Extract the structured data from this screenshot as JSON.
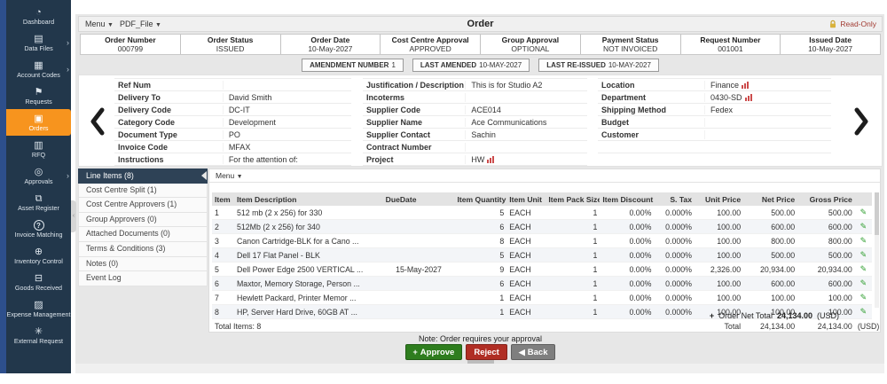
{
  "colors": {
    "accent_orange": "#f7941e",
    "sidebar_navy": "#22374b",
    "sidebar_strip_blue": "#2d4f8c",
    "active_tab_navy": "#2e4256",
    "approve_green": "#2e7d1e",
    "reject_red": "#b02e24",
    "back_gray": "#7f7f7f",
    "readonly_text": "#a23b32",
    "edit_icon_green": "#2f9e2f",
    "chart_icon_red": "#cc4b4b"
  },
  "topbar": {
    "menu_label": "Menu",
    "pdf_label": "PDF_File",
    "title": "Order",
    "readonly_label": "Read-Only"
  },
  "sidebar": {
    "items": [
      {
        "name": "dashboard",
        "label": "Dashboard",
        "icon": "dashboard-icon",
        "glyph": "◔",
        "chevron": false,
        "active": false,
        "circle": false
      },
      {
        "name": "data-files",
        "label": "Data Files",
        "icon": "data-files-icon",
        "glyph": "▤",
        "chevron": true,
        "active": false,
        "circle": false
      },
      {
        "name": "account-codes",
        "label": "Account Codes",
        "icon": "account-codes-icon",
        "glyph": "▦",
        "chevron": true,
        "active": false,
        "circle": false
      },
      {
        "name": "requests",
        "label": "Requests",
        "icon": "requests-icon",
        "glyph": "⚑",
        "chevron": false,
        "active": false,
        "circle": false
      },
      {
        "name": "orders",
        "label": "Orders",
        "icon": "orders-icon",
        "glyph": "▣",
        "chevron": false,
        "active": true,
        "circle": false
      },
      {
        "name": "rfq",
        "label": "RFQ",
        "icon": "rfq-icon",
        "glyph": "▥",
        "chevron": false,
        "active": false,
        "circle": false
      },
      {
        "name": "approvals",
        "label": "Approvals",
        "icon": "approvals-icon",
        "glyph": "◎",
        "chevron": true,
        "active": false,
        "circle": false
      },
      {
        "name": "asset-register",
        "label": "Asset Register",
        "icon": "asset-register-icon",
        "glyph": "⧉",
        "chevron": false,
        "active": false,
        "circle": false
      },
      {
        "name": "invoice-matching",
        "label": "Invoice Matching",
        "icon": "invoice-matching-icon",
        "glyph": "?",
        "chevron": false,
        "active": false,
        "circle": true
      },
      {
        "name": "inventory-control",
        "label": "Inventory Control",
        "icon": "inventory-control-icon",
        "glyph": "⊕",
        "chevron": false,
        "active": false,
        "circle": false
      },
      {
        "name": "goods-received",
        "label": "Goods Received",
        "icon": "goods-received-icon",
        "glyph": "⊟",
        "chevron": false,
        "active": false,
        "circle": false
      },
      {
        "name": "expense-management",
        "label": "Expense Management",
        "icon": "expense-management-icon",
        "glyph": "▨",
        "chevron": false,
        "active": false,
        "circle": false
      },
      {
        "name": "external-request",
        "label": "External Request",
        "icon": "external-request-icon",
        "glyph": "✳",
        "chevron": false,
        "active": false,
        "circle": false
      }
    ]
  },
  "header_fields": [
    {
      "label": "Order Number",
      "value": "000799"
    },
    {
      "label": "Order Status",
      "value": "ISSUED"
    },
    {
      "label": "Order Date",
      "value": "10-May-2027"
    },
    {
      "label": "Cost Centre Approval",
      "value": "APPROVED"
    },
    {
      "label": "Group Approval",
      "value": "OPTIONAL"
    },
    {
      "label": "Payment Status",
      "value": "NOT INVOICED"
    },
    {
      "label": "Request Number",
      "value": "001001"
    },
    {
      "label": "Issued Date",
      "value": "10-May-2027"
    }
  ],
  "amendments": [
    {
      "label": "AMENDMENT NUMBER",
      "value": "1"
    },
    {
      "label": "LAST AMENDED",
      "value": "10-MAY-2027"
    },
    {
      "label": "LAST RE-ISSUED",
      "value": "10-MAY-2027"
    }
  ],
  "details": {
    "col1": [
      {
        "label": "Ref Num",
        "value": "",
        "chart_icon": false
      },
      {
        "label": "Delivery To",
        "value": "David Smith",
        "chart_icon": false
      },
      {
        "label": "Delivery Code",
        "value": "DC-IT",
        "chart_icon": false
      },
      {
        "label": "Category Code",
        "value": "Development",
        "chart_icon": false
      },
      {
        "label": "Document Type",
        "value": "PO",
        "chart_icon": false
      },
      {
        "label": "Invoice Code",
        "value": "MFAX",
        "chart_icon": false
      },
      {
        "label": "Instructions",
        "value": "For the attention of:",
        "chart_icon": false
      }
    ],
    "col2": [
      {
        "label": "Justification / Description",
        "value": "This is for Studio A2",
        "chart_icon": false
      },
      {
        "label": "Incoterms",
        "value": "",
        "chart_icon": false
      },
      {
        "label": "Supplier Code",
        "value": "ACE014",
        "chart_icon": false
      },
      {
        "label": "Supplier Name",
        "value": "Ace Communications",
        "chart_icon": false
      },
      {
        "label": "Supplier Contact",
        "value": "Sachin",
        "chart_icon": false
      },
      {
        "label": "Contract Number",
        "value": "",
        "chart_icon": false
      },
      {
        "label": "Project",
        "value": "HW",
        "chart_icon": true
      }
    ],
    "col3": [
      {
        "label": "Location",
        "value": "Finance",
        "chart_icon": true
      },
      {
        "label": "Department",
        "value": "0430-SD",
        "chart_icon": true
      },
      {
        "label": "Shipping Method",
        "value": "Fedex",
        "chart_icon": false
      },
      {
        "label": "Budget",
        "value": "",
        "chart_icon": false
      },
      {
        "label": "Customer",
        "value": "",
        "chart_icon": false
      },
      {
        "label": "",
        "value": "",
        "chart_icon": false
      }
    ]
  },
  "tabs": [
    {
      "label": "Line Items (8)",
      "active": true
    },
    {
      "label": "Cost Centre Split (1)",
      "active": false
    },
    {
      "label": "Cost Centre Approvers (1)",
      "active": false
    },
    {
      "label": "Group Approvers (0)",
      "active": false
    },
    {
      "label": "Attached Documents (0)",
      "active": false
    },
    {
      "label": "Terms & Conditions (3)",
      "active": false
    },
    {
      "label": "Notes (0)",
      "active": false
    },
    {
      "label": "Event Log",
      "active": false
    }
  ],
  "line_items": {
    "menu_label": "Menu",
    "columns": [
      "Item",
      "Item Description",
      "DueDate",
      "Item Quantity",
      "Item Unit",
      "Item Pack Size",
      "Item Discount",
      "S. Tax",
      "Unit Price",
      "Net Price",
      "Gross Price"
    ],
    "rows": [
      [
        "1",
        "512 mb (2 x 256) for 330",
        "",
        "5",
        "EACH",
        "1",
        "0.00%",
        "0.000%",
        "100.00",
        "500.00",
        "500.00"
      ],
      [
        "2",
        "512Mb (2 x 256) for 340",
        "",
        "6",
        "EACH",
        "1",
        "0.00%",
        "0.000%",
        "100.00",
        "600.00",
        "600.00"
      ],
      [
        "3",
        "Canon Cartridge-BLK for a Cano ...",
        "",
        "8",
        "EACH",
        "1",
        "0.00%",
        "0.000%",
        "100.00",
        "800.00",
        "800.00"
      ],
      [
        "4",
        "Dell 17 Flat Panel - BLK",
        "",
        "5",
        "EACH",
        "1",
        "0.00%",
        "0.000%",
        "100.00",
        "500.00",
        "500.00"
      ],
      [
        "5",
        "Dell Power Edge 2500 VERTICAL ...",
        "15-May-2027",
        "9",
        "EACH",
        "1",
        "0.00%",
        "0.000%",
        "2,326.00",
        "20,934.00",
        "20,934.00"
      ],
      [
        "6",
        "Maxtor, Memory Storage, Person ...",
        "",
        "6",
        "EACH",
        "1",
        "0.00%",
        "0.000%",
        "100.00",
        "600.00",
        "600.00"
      ],
      [
        "7",
        "Hewlett Packard, Printer Memor ...",
        "",
        "1",
        "EACH",
        "1",
        "0.00%",
        "0.000%",
        "100.00",
        "100.00",
        "100.00"
      ],
      [
        "8",
        "HP, Server Hard Drive, 60GB AT ...",
        "",
        "1",
        "EACH",
        "1",
        "0.00%",
        "0.000%",
        "100.00",
        "100.00",
        "100.00"
      ]
    ],
    "totals": {
      "total_items_label": "Total Items: 8",
      "total_label": "Total",
      "net_total": "24,134.00",
      "gross_total": "24,134.00",
      "currency": "(USD)"
    },
    "order_net_total": {
      "plus": "+",
      "label": "Order Net Total",
      "value": "24,134.00",
      "currency": "(USD)"
    }
  },
  "footer": {
    "note": "Note: Order requires your approval",
    "approve_plus": "+",
    "approve_label": "Approve",
    "reject_label": "Reject",
    "back_arrow": "◀",
    "back_label": "Back"
  }
}
